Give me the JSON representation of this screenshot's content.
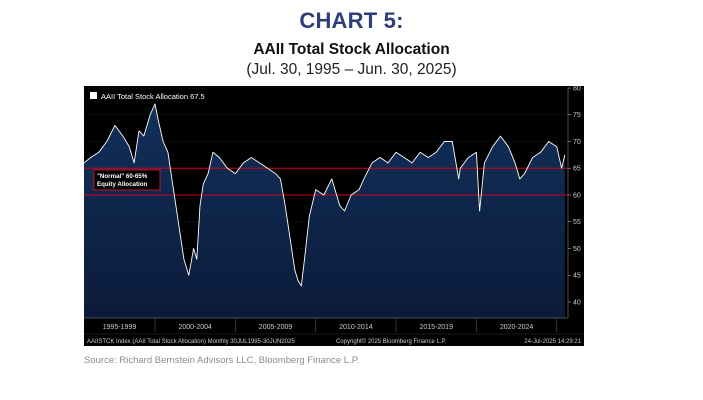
{
  "header": {
    "title": "CHART 5:",
    "subtitle": "AAII Total Stock Allocation",
    "date_range": "(Jul. 30, 1995 – Jun. 30, 2025)"
  },
  "source": "Source: Richard Bernstein Advisors LLC, Bloomberg Finance L.P.",
  "chart_data": {
    "type": "area",
    "legend": {
      "label": "AAII Total Stock Allocation 67.5",
      "position": "top-left"
    },
    "annotation": {
      "lines": [
        "\"Normal\" 60-65%",
        "Equity Allocation"
      ]
    },
    "reference_lines": [
      65,
      60
    ],
    "ylim": [
      37,
      80
    ],
    "y_ticks": [
      40,
      45,
      50,
      55,
      60,
      65,
      70,
      75,
      80
    ],
    "xlim": [
      1995.58,
      2025.7
    ],
    "x_period_labels": [
      "1995-1999",
      "2000-2004",
      "2005-2009",
      "2010-2014",
      "2015-2019",
      "2020-2024"
    ],
    "grid": true,
    "footer": {
      "left": "AAIISTCK Index (AAII Total Stock Allocation) Monthly 30JUL1995-30JUN2025",
      "center": "Copyright© 2025 Bloomberg Finance L.P.",
      "right": "24-Jul-2025 14:29:21"
    },
    "series": [
      {
        "x": [
          1995.58,
          1996.0,
          1996.5,
          1997.0,
          1997.5,
          1998.0,
          1998.4,
          1998.7,
          1999.0,
          1999.3,
          1999.7,
          2000.0,
          2000.2,
          2000.5,
          2000.8,
          2001.0,
          2001.3,
          2001.6,
          2001.8,
          2002.1,
          2002.4,
          2002.6,
          2002.8,
          2003.0,
          2003.3,
          2003.6,
          2004.0,
          2004.5,
          2005.0,
          2005.5,
          2006.0,
          2006.5,
          2007.0,
          2007.5,
          2007.8,
          2008.1,
          2008.4,
          2008.7,
          2008.9,
          2009.1,
          2009.3,
          2009.6,
          2010.0,
          2010.5,
          2011.0,
          2011.5,
          2011.8,
          2012.2,
          2012.7,
          2013.0,
          2013.5,
          2014.0,
          2014.5,
          2015.0,
          2015.5,
          2016.0,
          2016.5,
          2017.0,
          2017.5,
          2018.0,
          2018.5,
          2018.9,
          2019.0,
          2019.5,
          2020.0,
          2020.2,
          2020.5,
          2021.0,
          2021.5,
          2022.0,
          2022.4,
          2022.7,
          2023.0,
          2023.5,
          2024.0,
          2024.5,
          2025.0,
          2025.3,
          2025.5
        ],
        "values": [
          66,
          67,
          68,
          70,
          73,
          71,
          69,
          66,
          72,
          71,
          75,
          77,
          74,
          70,
          68,
          64,
          58,
          52,
          48,
          45,
          50,
          48,
          58,
          62,
          64,
          68,
          67,
          65,
          64,
          66,
          67,
          66,
          65,
          64,
          63,
          58,
          52,
          46,
          44,
          43,
          48,
          56,
          61,
          60,
          63,
          58,
          57,
          60,
          61,
          63,
          66,
          67,
          66,
          68,
          67,
          66,
          68,
          67,
          68,
          70,
          70,
          63,
          65,
          67,
          68,
          57,
          66,
          69,
          71,
          69,
          66,
          63,
          64,
          67,
          68,
          70,
          69,
          65,
          67.5
        ]
      }
    ]
  }
}
